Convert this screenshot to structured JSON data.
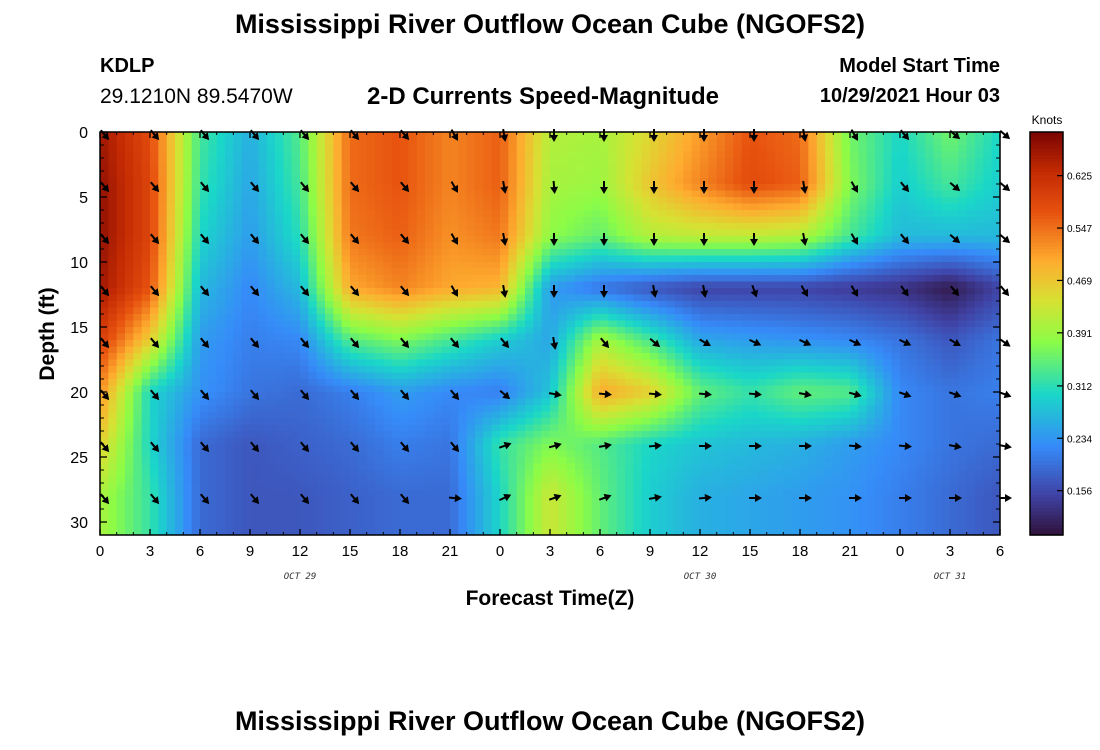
{
  "header": {
    "title": "Mississippi River Outflow Ocean Cube (NGOFS2)",
    "station_id": "KDLP",
    "station_coords": "29.1210N  89.5470W",
    "chart_title": "2-D Currents Speed-Magnitude",
    "model_label": "Model Start Time",
    "model_time": "10/29/2021 Hour 03"
  },
  "footer": {
    "title": "Mississippi River Outflow Ocean Cube (NGOFS2)"
  },
  "chart_data": {
    "type": "heatmap",
    "title": "2-D Currents Speed-Magnitude",
    "xlabel": "Forecast Time(Z)",
    "ylabel": "Depth (ft)",
    "x_tick_labels": [
      "0",
      "3",
      "6",
      "9",
      "12",
      "15",
      "18",
      "21",
      "0",
      "3",
      "6",
      "9",
      "12",
      "15",
      "18",
      "21",
      "0",
      "3",
      "6"
    ],
    "x_hours": [
      0,
      3,
      6,
      9,
      12,
      15,
      18,
      21,
      24,
      27,
      30,
      33,
      36,
      39,
      42,
      45,
      48,
      51,
      54
    ],
    "xlim": [
      0,
      54
    ],
    "date_labels": [
      {
        "text": "OCT 29",
        "hour": 12
      },
      {
        "text": "OCT 30",
        "hour": 36
      },
      {
        "text": "OCT 31",
        "hour": 51
      }
    ],
    "y_ticks": [
      0,
      5,
      10,
      15,
      20,
      25,
      30
    ],
    "ylim": [
      0,
      31
    ],
    "y_inverted": true,
    "colorbar": {
      "label": "Knots",
      "ticks": [
        "0.625",
        "0.547",
        "0.469",
        "0.391",
        "0.312",
        "0.234",
        "0.156"
      ],
      "tick_values": [
        0.625,
        0.547,
        0.469,
        0.391,
        0.312,
        0.234,
        0.156
      ],
      "range": [
        0.09,
        0.69
      ]
    },
    "depths": [
      0,
      4,
      8,
      12,
      16,
      20,
      24,
      28
    ],
    "speed_hours": [
      0,
      3,
      6,
      9,
      12,
      15,
      18,
      21,
      24,
      27,
      30,
      33,
      36,
      39,
      42,
      45,
      48,
      51,
      54
    ],
    "speed": [
      [
        0.66,
        0.58,
        0.33,
        0.26,
        0.34,
        0.55,
        0.57,
        0.53,
        0.56,
        0.41,
        0.4,
        0.45,
        0.51,
        0.57,
        0.55,
        0.36,
        0.3,
        0.36,
        0.3
      ],
      [
        0.67,
        0.59,
        0.32,
        0.25,
        0.33,
        0.55,
        0.57,
        0.53,
        0.56,
        0.4,
        0.39,
        0.47,
        0.53,
        0.58,
        0.56,
        0.37,
        0.29,
        0.33,
        0.29
      ],
      [
        0.67,
        0.59,
        0.3,
        0.24,
        0.31,
        0.54,
        0.56,
        0.52,
        0.54,
        0.38,
        0.35,
        0.41,
        0.42,
        0.42,
        0.41,
        0.33,
        0.27,
        0.27,
        0.27
      ],
      [
        0.66,
        0.57,
        0.27,
        0.22,
        0.27,
        0.5,
        0.53,
        0.5,
        0.49,
        0.24,
        0.2,
        0.17,
        0.15,
        0.15,
        0.15,
        0.14,
        0.13,
        0.1,
        0.15
      ],
      [
        0.6,
        0.46,
        0.24,
        0.21,
        0.22,
        0.34,
        0.37,
        0.33,
        0.29,
        0.25,
        0.4,
        0.33,
        0.25,
        0.24,
        0.23,
        0.22,
        0.2,
        0.17,
        0.2
      ],
      [
        0.52,
        0.3,
        0.23,
        0.2,
        0.19,
        0.21,
        0.24,
        0.22,
        0.21,
        0.28,
        0.5,
        0.46,
        0.35,
        0.32,
        0.35,
        0.34,
        0.22,
        0.2,
        0.21
      ],
      [
        0.46,
        0.3,
        0.19,
        0.17,
        0.18,
        0.19,
        0.21,
        0.2,
        0.32,
        0.37,
        0.34,
        0.3,
        0.28,
        0.27,
        0.26,
        0.24,
        0.22,
        0.2,
        0.19
      ],
      [
        0.4,
        0.32,
        0.19,
        0.17,
        0.17,
        0.18,
        0.19,
        0.19,
        0.3,
        0.43,
        0.35,
        0.29,
        0.26,
        0.25,
        0.24,
        0.23,
        0.21,
        0.19,
        0.17
      ]
    ],
    "vector_hours": [
      0,
      3,
      6,
      9,
      12,
      15,
      18,
      21,
      24,
      27,
      30,
      33,
      36,
      39,
      42,
      45,
      48,
      51,
      54
    ],
    "vector_depths": [
      0,
      4,
      8,
      12,
      16,
      20,
      24,
      28
    ],
    "direction_deg": [
      [
        140,
        140,
        140,
        140,
        140,
        140,
        140,
        150,
        170,
        180,
        180,
        180,
        180,
        180,
        170,
        150,
        140,
        130,
        130
      ],
      [
        140,
        140,
        140,
        140,
        140,
        140,
        140,
        150,
        170,
        175,
        180,
        180,
        180,
        180,
        170,
        150,
        140,
        130,
        130
      ],
      [
        140,
        140,
        140,
        140,
        140,
        140,
        140,
        150,
        170,
        180,
        180,
        180,
        180,
        180,
        170,
        150,
        140,
        130,
        130
      ],
      [
        140,
        140,
        140,
        140,
        140,
        140,
        140,
        150,
        170,
        180,
        180,
        170,
        170,
        160,
        150,
        150,
        145,
        140,
        140
      ],
      [
        140,
        140,
        140,
        140,
        140,
        140,
        140,
        140,
        140,
        170,
        140,
        130,
        120,
        115,
        115,
        115,
        115,
        120,
        125
      ],
      [
        140,
        140,
        140,
        140,
        140,
        140,
        140,
        140,
        130,
        100,
        95,
        95,
        95,
        95,
        100,
        105,
        110,
        110,
        110
      ],
      [
        140,
        140,
        140,
        140,
        140,
        140,
        140,
        140,
        70,
        75,
        80,
        85,
        90,
        90,
        90,
        95,
        95,
        100,
        100
      ],
      [
        140,
        140,
        140,
        140,
        140,
        140,
        140,
        95,
        65,
        70,
        70,
        80,
        85,
        90,
        90,
        90,
        90,
        90,
        90
      ]
    ]
  }
}
